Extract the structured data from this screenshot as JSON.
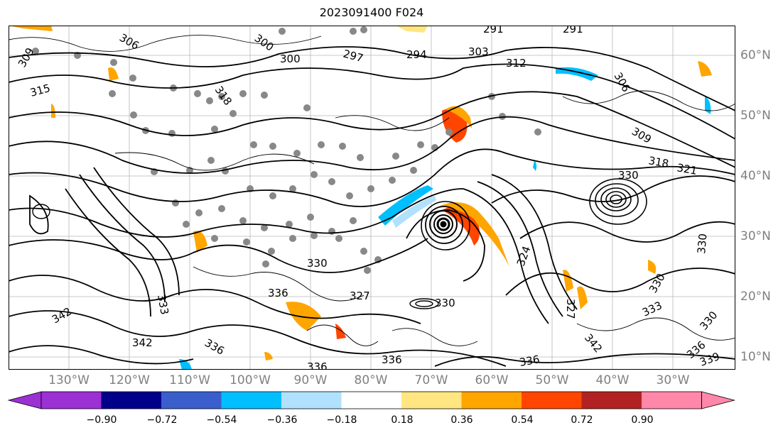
{
  "title": "2023091400 F024",
  "lon_labels": [
    "130°W",
    "120°W",
    "110°W",
    "100°W",
    "90°W",
    "80°W",
    "70°W",
    "60°W",
    "50°W",
    "40°W",
    "30°W"
  ],
  "lat_labels": [
    "60°N",
    "50°N",
    "40°N",
    "30°N",
    "20°N",
    "10°N"
  ],
  "contour_labels": [
    "306",
    "300",
    "297",
    "294",
    "291",
    "291",
    "300",
    "303",
    "312",
    "306",
    "309",
    "318",
    "321",
    "330",
    "330",
    "336",
    "330",
    "333",
    "336",
    "342",
    "342",
    "333",
    "342",
    "336",
    "336",
    "336",
    "339",
    "324",
    "330",
    "309",
    "315",
    "318",
    "327",
    "327",
    "330",
    "336",
    "330"
  ],
  "colorbar": {
    "tick_labels": [
      "−0.90",
      "−0.72",
      "−0.54",
      "−0.36",
      "−0.18",
      "0.18",
      "0.36",
      "0.54",
      "0.72",
      "0.90"
    ],
    "colors": [
      "#9b30d4",
      "#00008b",
      "#3a5fcd",
      "#00bfff",
      "#b0e2ff",
      "#ffffff",
      "#ffe680",
      "#ffa500",
      "#ff4500",
      "#b22222",
      "#ff88aa"
    ]
  },
  "colors": {
    "axis": "#808080",
    "contour": "#000000",
    "land_dots": "#888888"
  }
}
